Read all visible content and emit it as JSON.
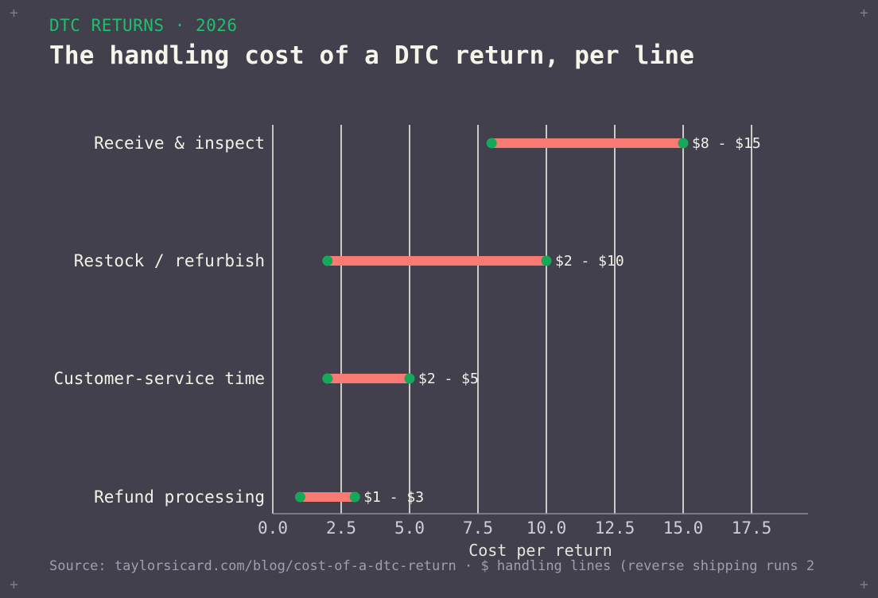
{
  "header": {
    "kicker": "DTC RETURNS · 2026",
    "title": "The handling cost of a DTC return, per line"
  },
  "footer": {
    "source": "Source: taylorsicard.com/blog/cost-of-a-dtc-return · $ handling lines (reverse shipping runs 2"
  },
  "colors": {
    "background": "#41404c",
    "bar": "#f87a72",
    "dot": "#16a85a",
    "kicker": "#1fbf6c",
    "gridline": "#f0ede6"
  },
  "chart_data": {
    "type": "range-dumbbell",
    "categories": [
      "Receive & inspect",
      "Restock / refurbish",
      "Customer-service time",
      "Refund processing"
    ],
    "series": [
      {
        "low": 8,
        "high": 15,
        "label": "$8 - $15"
      },
      {
        "low": 2,
        "high": 10,
        "label": "$2 - $10"
      },
      {
        "low": 2,
        "high": 5,
        "label": "$2 - $5"
      },
      {
        "low": 1,
        "high": 3,
        "label": "$1 - $3"
      }
    ],
    "xlabel": "Cost per return",
    "xlim": [
      0,
      19.5
    ],
    "xticks": [
      0.0,
      2.5,
      5.0,
      7.5,
      10.0,
      12.5,
      15.0,
      17.5
    ],
    "xtick_labels": [
      "0.0",
      "2.5",
      "5.0",
      "7.5",
      "10.0",
      "12.5",
      "15.0",
      "17.5"
    ],
    "grid": "vertical"
  }
}
